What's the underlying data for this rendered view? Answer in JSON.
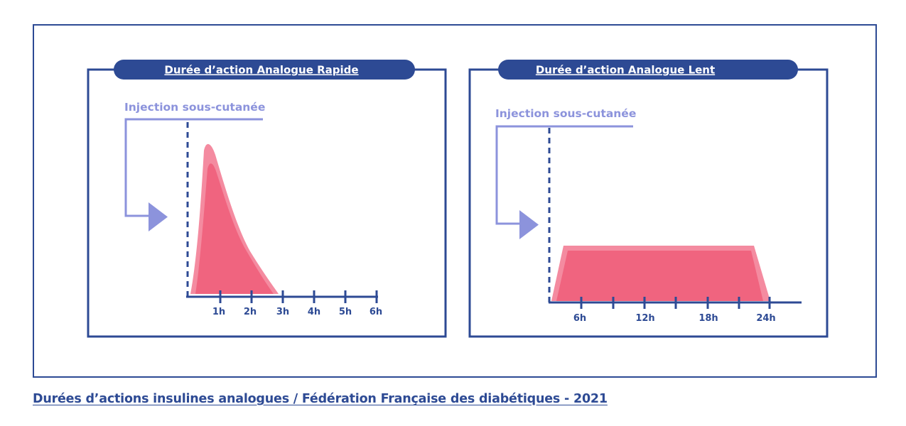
{
  "panels": {
    "rapid": {
      "title": "Durée d’action Analogue Rapide",
      "injection_label": "Injection sous-cutanée",
      "tick_labels": [
        "1h",
        "2h",
        "3h",
        "4h",
        "5h",
        "6h"
      ]
    },
    "slow": {
      "title": "Durée d’action Analogue Lent",
      "injection_label": "Injection sous-cutanée",
      "tick_labels": [
        "6h",
        "12h",
        "18h",
        "24h"
      ]
    }
  },
  "caption": "Durées d’actions insulines analogues / Fédération Française des diabétiques - 2021",
  "colors": {
    "navy": "#2d4a94",
    "lavender": "#8c93dc",
    "curve_light": "#f48ba0",
    "curve_dark": "#f0647f",
    "white": "#ffffff"
  }
}
